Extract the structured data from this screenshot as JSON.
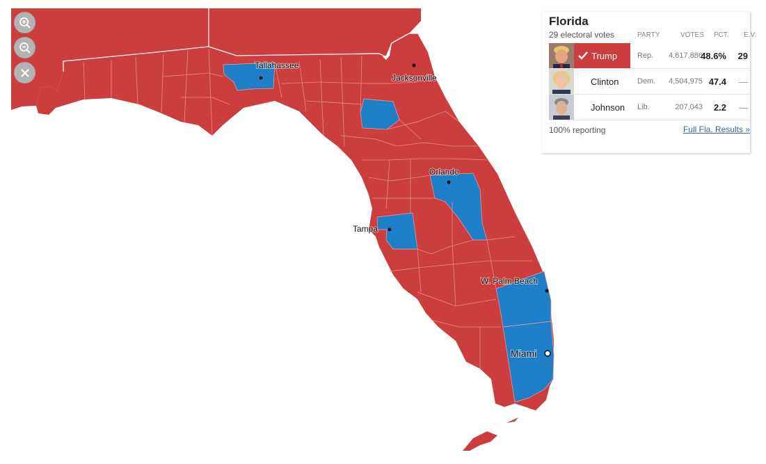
{
  "colors": {
    "rep": "#cc3d3d",
    "dem": "#1f7ec8",
    "border": "#e88d8d",
    "link": "#326891"
  },
  "map": {
    "state": "Florida",
    "cities": [
      {
        "name": "Tallahassee",
        "marker": "dot"
      },
      {
        "name": "Jacksonville",
        "marker": "dot"
      },
      {
        "name": "Orlando",
        "marker": "dot"
      },
      {
        "name": "Tampa",
        "marker": "dot"
      },
      {
        "name": "W. Palm Beach",
        "marker": "dot"
      },
      {
        "name": "Miami",
        "marker": "ring"
      }
    ]
  },
  "controls": {
    "zoom_in_icon": "zoom-in-icon",
    "zoom_out_icon": "zoom-out-icon",
    "close_icon": "close-icon"
  },
  "panel": {
    "title": "Florida",
    "subtitle": "29 electoral votes",
    "columns": {
      "party": "PARTY",
      "votes": "VOTES",
      "pct": "PCT.",
      "ev": "E.V."
    },
    "candidates": [
      {
        "name": "Trump",
        "party": "Rep.",
        "votes": "4,617,886",
        "pct": "48.6%",
        "ev": "29",
        "winner": true
      },
      {
        "name": "Clinton",
        "party": "Dem.",
        "votes": "4,504,975",
        "pct": "47.4",
        "ev": "—",
        "winner": false
      },
      {
        "name": "Johnson",
        "party": "Lib.",
        "votes": "207,043",
        "pct": "2.2",
        "ev": "—",
        "winner": false
      }
    ],
    "reporting": "100% reporting",
    "full_results_link": "Full Fla. Results »"
  }
}
